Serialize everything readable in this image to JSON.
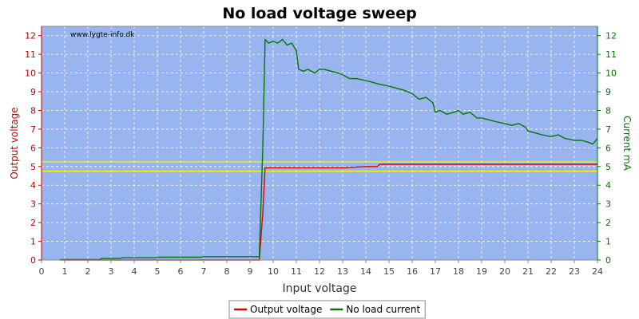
{
  "chart_data": {
    "type": "line",
    "title": "No load voltage sweep",
    "watermark": "www.lygte-info.dk",
    "xlabel": "Input voltage",
    "ylabel_left": "Output voltage",
    "ylabel_right": "Current mA",
    "xlim": [
      0,
      24
    ],
    "ylim_left": [
      0,
      12.5
    ],
    "ylim_right": [
      0,
      12.5
    ],
    "xticks": [
      0,
      1,
      2,
      3,
      4,
      5,
      6,
      7,
      8,
      9,
      10,
      11,
      12,
      13,
      14,
      15,
      16,
      17,
      18,
      19,
      20,
      21,
      22,
      23,
      24
    ],
    "yticks": [
      0,
      1,
      2,
      3,
      4,
      5,
      6,
      7,
      8,
      9,
      10,
      11,
      12
    ],
    "grid": true,
    "legend_position": "bottom",
    "reference_lines": [
      {
        "y": 5.25,
        "color": "#ffff00"
      },
      {
        "y": 4.75,
        "color": "#ffff00"
      }
    ],
    "colors": {
      "plot_background": "#99b5f0",
      "output_voltage": "#dd0000",
      "current": "#007700",
      "left_axis": "#cc0000",
      "right_axis": "#007700"
    },
    "series": [
      {
        "name": "Output voltage",
        "axis": "left",
        "x": [
          0.8,
          9.4,
          9.55,
          9.65,
          11,
          13,
          14,
          14.5,
          14.6,
          24
        ],
        "y": [
          0,
          0,
          2.5,
          4.93,
          4.93,
          4.93,
          5.0,
          5.0,
          5.12,
          5.12
        ]
      },
      {
        "name": "No load current",
        "axis": "right",
        "x": [
          0.8,
          2.5,
          2.6,
          3.4,
          3.5,
          4.9,
          5.0,
          6.9,
          7.0,
          9.4,
          9.55,
          9.65,
          9.8,
          10.0,
          10.2,
          10.4,
          10.6,
          10.8,
          11.0,
          11.1,
          11.3,
          11.5,
          11.8,
          12.0,
          12.2,
          12.5,
          12.8,
          13.0,
          13.3,
          13.6,
          14.0,
          14.3,
          14.6,
          15.0,
          15.3,
          15.6,
          16.0,
          16.3,
          16.6,
          16.9,
          17.0,
          17.2,
          17.5,
          17.8,
          18.0,
          18.2,
          18.5,
          18.8,
          19.0,
          19.3,
          19.6,
          20.0,
          20.3,
          20.6,
          20.9,
          21.0,
          21.3,
          21.6,
          22.0,
          22.3,
          22.6,
          23.0,
          23.3,
          23.6,
          23.8,
          24.0
        ],
        "y": [
          0.02,
          0.02,
          0.08,
          0.08,
          0.12,
          0.12,
          0.15,
          0.15,
          0.18,
          0.18,
          6.0,
          11.8,
          11.6,
          11.7,
          11.6,
          11.8,
          11.5,
          11.6,
          11.2,
          10.2,
          10.1,
          10.2,
          10.0,
          10.2,
          10.2,
          10.1,
          10.0,
          9.9,
          9.7,
          9.7,
          9.6,
          9.5,
          9.4,
          9.3,
          9.2,
          9.1,
          8.9,
          8.6,
          8.7,
          8.4,
          7.9,
          8.0,
          7.8,
          7.9,
          8.0,
          7.8,
          7.9,
          7.6,
          7.6,
          7.5,
          7.4,
          7.3,
          7.2,
          7.3,
          7.1,
          6.9,
          6.8,
          6.7,
          6.6,
          6.7,
          6.5,
          6.4,
          6.4,
          6.3,
          6.2,
          6.5
        ]
      }
    ]
  }
}
